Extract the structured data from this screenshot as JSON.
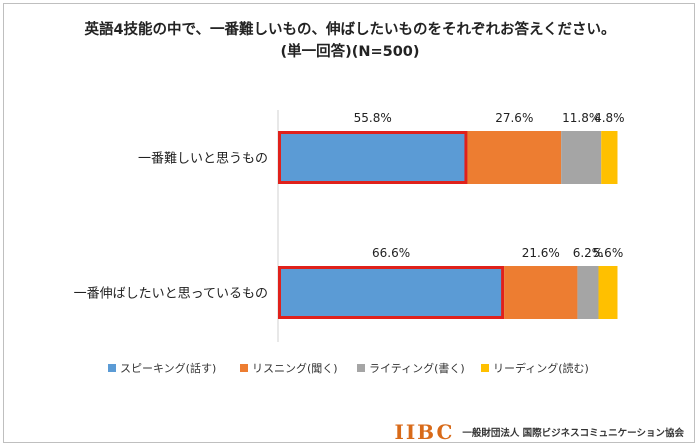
{
  "chart_data": {
    "type": "bar",
    "orientation": "horizontal",
    "stacked": true,
    "percent_stacked": true,
    "title": "英語4技能の中で、一番難しいもの、伸ばしたいものをそれぞれお答えください。",
    "subtitle": "(単一回答)(N=500)",
    "categories": [
      "一番難しいと思うもの",
      "一番伸ばしたいと思っているもの"
    ],
    "series": [
      {
        "name": "スピーキング(話す)",
        "values": [
          55.8,
          66.6
        ],
        "color": "#5b9bd5",
        "labels": [
          "55.8%",
          "66.6%"
        ]
      },
      {
        "name": "リスニング(聞く)",
        "values": [
          27.6,
          21.6
        ],
        "color": "#ed7d31",
        "labels": [
          "27.6%",
          "21.6%"
        ]
      },
      {
        "name": "ライティング(書く)",
        "values": [
          11.8,
          6.2
        ],
        "color": "#a5a5a5",
        "labels": [
          "11.8%",
          "6.2%"
        ]
      },
      {
        "name": "リーディング(読む)",
        "values": [
          4.8,
          5.6
        ],
        "color": "#ffc000",
        "labels": [
          "4.8%",
          "5.6%"
        ]
      }
    ],
    "highlight_series": "スピーキング(話す)",
    "highlight_color": "#e0211b",
    "xlim": [
      0,
      100
    ],
    "grid": false,
    "legend_position": "bottom"
  },
  "footer": {
    "logo_mark": "IIBC",
    "logo_text": "一般財団法人 国際ビジネスコミュニケーション協会"
  }
}
